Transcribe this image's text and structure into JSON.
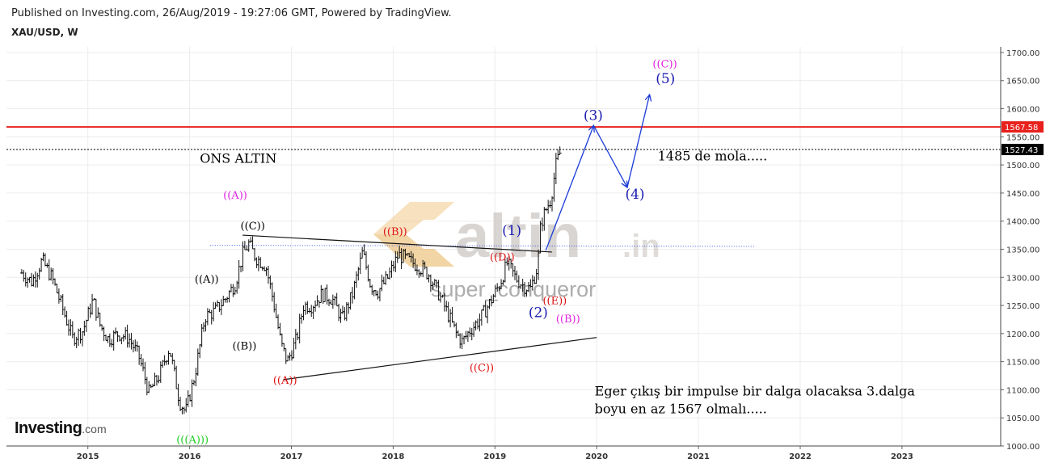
{
  "header": {
    "published": "Published on Investing.com, 26/Aug/2019 - 19:27:06 GMT, Powered by TradingView.",
    "symbol": "XAU/USD, W"
  },
  "logo": {
    "main": "Investing",
    "suffix": ".com"
  },
  "watermark": {
    "site": "altin",
    "site_suffix": ".in",
    "author": "super_conqueror"
  },
  "chart_data": {
    "type": "candlestick",
    "ylim": [
      1000,
      1710
    ],
    "y_ticks": [
      "1000.00",
      "1050.00",
      "1100.00",
      "1150.00",
      "1200.00",
      "1250.00",
      "1300.00",
      "1350.00",
      "1400.00",
      "1450.00",
      "1500.00",
      "1550.00",
      "1600.00",
      "1650.00",
      "1700.00"
    ],
    "x_ticks": [
      "2015",
      "2016",
      "2017",
      "2018",
      "2019",
      "2020",
      "2021",
      "2022",
      "2023"
    ],
    "price_tags": [
      {
        "label": "1567.58",
        "value": 1567.58,
        "color": "#e8211d"
      },
      {
        "label": "1527.43",
        "value": 1527.43,
        "color": "#000000"
      }
    ],
    "series": [
      {
        "values": [
          [
            2014.35,
            1308
          ],
          [
            2014.45,
            1292
          ],
          [
            2014.55,
            1330
          ],
          [
            2014.65,
            1298
          ],
          [
            2014.75,
            1245
          ],
          [
            2014.85,
            1192
          ],
          [
            2014.95,
            1205
          ],
          [
            2015.05,
            1260
          ],
          [
            2015.12,
            1215
          ],
          [
            2015.2,
            1190
          ],
          [
            2015.3,
            1200
          ],
          [
            2015.4,
            1192
          ],
          [
            2015.5,
            1160
          ],
          [
            2015.6,
            1095
          ],
          [
            2015.7,
            1125
          ],
          [
            2015.8,
            1175
          ],
          [
            2015.9,
            1080
          ],
          [
            2015.96,
            1060
          ],
          [
            2016.05,
            1125
          ],
          [
            2016.15,
            1230
          ],
          [
            2016.25,
            1240
          ],
          [
            2016.35,
            1262
          ],
          [
            2016.45,
            1290
          ],
          [
            2016.52,
            1340
          ],
          [
            2016.58,
            1360
          ],
          [
            2016.65,
            1335
          ],
          [
            2016.75,
            1320
          ],
          [
            2016.82,
            1260
          ],
          [
            2016.9,
            1180
          ],
          [
            2016.96,
            1150
          ],
          [
            2017.05,
            1190
          ],
          [
            2017.12,
            1250
          ],
          [
            2017.2,
            1250
          ],
          [
            2017.3,
            1270
          ],
          [
            2017.4,
            1262
          ],
          [
            2017.5,
            1225
          ],
          [
            2017.6,
            1270
          ],
          [
            2017.7,
            1345
          ],
          [
            2017.78,
            1285
          ],
          [
            2017.85,
            1275
          ],
          [
            2017.95,
            1300
          ],
          [
            2018.05,
            1340
          ],
          [
            2018.15,
            1330
          ],
          [
            2018.25,
            1320
          ],
          [
            2018.35,
            1305
          ],
          [
            2018.45,
            1270
          ],
          [
            2018.55,
            1230
          ],
          [
            2018.62,
            1200
          ],
          [
            2018.68,
            1185
          ],
          [
            2018.75,
            1205
          ],
          [
            2018.85,
            1225
          ],
          [
            2018.95,
            1255
          ],
          [
            2019.05,
            1290
          ],
          [
            2019.12,
            1325
          ],
          [
            2019.2,
            1300
          ],
          [
            2019.28,
            1285
          ],
          [
            2019.35,
            1280
          ],
          [
            2019.42,
            1320
          ],
          [
            2019.45,
            1395
          ],
          [
            2019.5,
            1420
          ],
          [
            2019.55,
            1440
          ],
          [
            2019.6,
            1500
          ],
          [
            2019.65,
            1527
          ]
        ]
      }
    ],
    "projection": {
      "color": "#1a3bd8",
      "points": [
        [
          2019.5,
          1348
        ],
        [
          2019.97,
          1570
        ],
        [
          2020.3,
          1460
        ],
        [
          2020.52,
          1625
        ]
      ]
    },
    "trendlines": [
      {
        "from": [
          2016.52,
          1375
        ],
        "to": [
          2019.56,
          1345
        ]
      },
      {
        "from": [
          2016.92,
          1118
        ],
        "to": [
          2020.0,
          1193
        ]
      }
    ],
    "dotted_lines": [
      {
        "from": [
          2016.2,
          1357
        ],
        "to": [
          2021.55,
          1355
        ],
        "color": "#3a57e8"
      }
    ],
    "annotations": [
      {
        "text": "ONS ALTIN",
        "x": 2016.1,
        "y": 1504,
        "color": "#000000"
      },
      {
        "text": "((A))",
        "x": 2016.33,
        "y": 1440,
        "color": "#e020e0"
      },
      {
        "text": "((C))",
        "x": 2016.5,
        "y": 1385,
        "color": "#000000"
      },
      {
        "text": "((A))",
        "x": 2016.05,
        "y": 1290,
        "color": "#000000"
      },
      {
        "text": "((B))",
        "x": 2016.42,
        "y": 1172,
        "color": "#000000"
      },
      {
        "text": "(((A)))",
        "x": 2015.87,
        "y": 1005,
        "color": "#22cc22"
      },
      {
        "text": "((A))",
        "x": 2016.82,
        "y": 1111,
        "color": "#dd1111"
      },
      {
        "text": "((B))",
        "x": 2017.9,
        "y": 1375,
        "color": "#dd1111"
      },
      {
        "text": "((D))",
        "x": 2018.95,
        "y": 1330,
        "color": "#dd1111"
      },
      {
        "text": "((C))",
        "x": 2018.75,
        "y": 1133,
        "color": "#dd1111"
      },
      {
        "text": "((E))",
        "x": 2019.47,
        "y": 1252,
        "color": "#dd1111"
      },
      {
        "text": "((B))",
        "x": 2019.6,
        "y": 1220,
        "color": "#e020e0"
      },
      {
        "text": "(1)",
        "x": 2019.07,
        "y": 1375,
        "color": "#1a1ab0"
      },
      {
        "text": "(2)",
        "x": 2019.33,
        "y": 1229,
        "color": "#1a1ab0"
      },
      {
        "text": "(3)",
        "x": 2019.87,
        "y": 1580,
        "color": "#1a1ab0"
      },
      {
        "text": "(4)",
        "x": 2020.28,
        "y": 1440,
        "color": "#1a1ab0"
      },
      {
        "text": "(5)",
        "x": 2020.58,
        "y": 1645,
        "color": "#1a1ab0"
      },
      {
        "text": "((C))",
        "x": 2020.55,
        "y": 1673,
        "color": "#e020e0"
      },
      {
        "text": "1485 de mola.....",
        "x": 2020.6,
        "y": 1508,
        "color": "#000000"
      },
      {
        "text": "Eger çıkış bir impulse bir dalga olacaksa 3.dalga",
        "x": 2019.98,
        "y": 1090,
        "color": "#000000"
      },
      {
        "text": "boyu en az 1567 olmalı.....",
        "x": 2019.98,
        "y": 1058,
        "color": "#000000"
      }
    ]
  }
}
